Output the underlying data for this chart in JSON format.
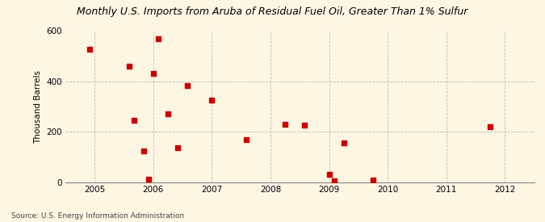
{
  "title": "Monthly U.S. Imports from Aruba of Residual Fuel Oil, Greater Than 1% Sulfur",
  "ylabel": "Thousand Barrels",
  "source": "Source: U.S. Energy Information Administration",
  "background_color": "#fdf6e3",
  "plot_bg_color": "#fdf6e3",
  "marker_color": "#cc0000",
  "grid_color": "#bbbbbb",
  "xlim": [
    2004.5,
    2012.5
  ],
  "ylim": [
    0,
    600
  ],
  "yticks": [
    0,
    200,
    400,
    600
  ],
  "xticks": [
    2005,
    2006,
    2007,
    2008,
    2009,
    2010,
    2011,
    2012
  ],
  "data_points": [
    [
      2004.917,
      527
    ],
    [
      2005.583,
      460
    ],
    [
      2005.667,
      247
    ],
    [
      2005.833,
      122
    ],
    [
      2005.917,
      10
    ],
    [
      2006.0,
      433
    ],
    [
      2006.083,
      570
    ],
    [
      2006.25,
      270
    ],
    [
      2006.417,
      135
    ],
    [
      2006.583,
      385
    ],
    [
      2007.0,
      327
    ],
    [
      2007.583,
      167
    ],
    [
      2008.25,
      228
    ],
    [
      2008.583,
      225
    ],
    [
      2009.0,
      30
    ],
    [
      2009.083,
      5
    ],
    [
      2009.25,
      155
    ],
    [
      2009.75,
      8
    ],
    [
      2011.75,
      220
    ]
  ]
}
